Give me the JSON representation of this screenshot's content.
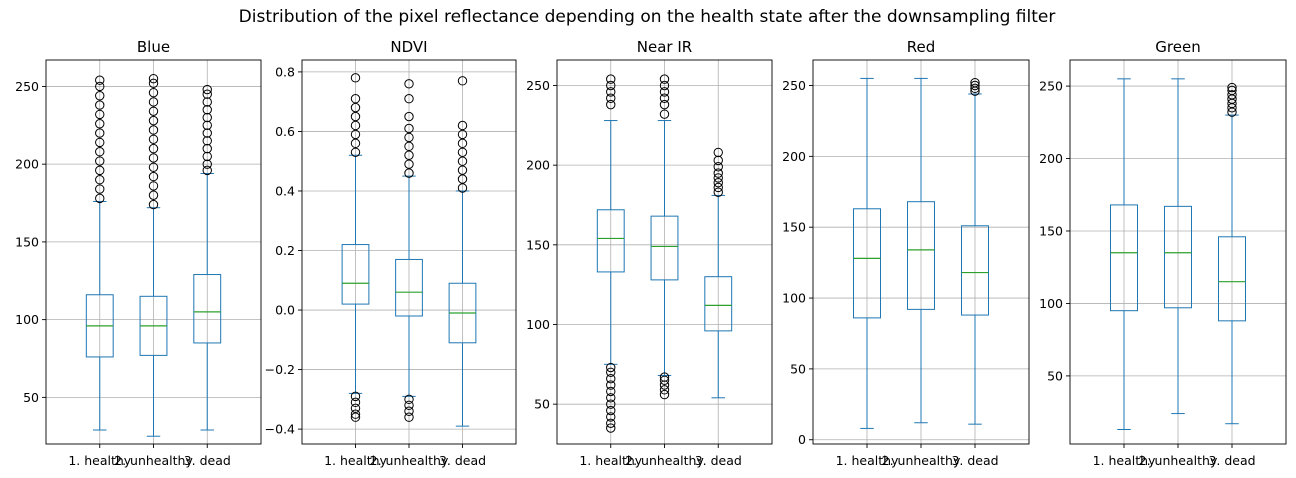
{
  "title": "Distribution of the pixel reflectance depending on the health state after the downsampling filter",
  "colors": {
    "box": "#1f77b4",
    "median": "#2ca02c",
    "grid": "#b0b0b0",
    "axes": "#000000"
  },
  "chart_data": [
    {
      "type": "box",
      "title": "Blue",
      "categories": [
        "1. healthy",
        "2. unhealthy",
        "3. dead"
      ],
      "ylim": [
        20,
        267
      ],
      "yticks": [
        50,
        100,
        150,
        200,
        250
      ],
      "grid": true,
      "boxes": [
        {
          "whislo": 29,
          "q1": 76,
          "med": 96,
          "q3": 116,
          "whishi": 176,
          "fliers": [
            178,
            184,
            190,
            196,
            202,
            208,
            214,
            220,
            226,
            232,
            238,
            244,
            250,
            254
          ]
        },
        {
          "whislo": 25,
          "q1": 77,
          "med": 96,
          "q3": 115,
          "whishi": 172,
          "fliers": [
            174,
            180,
            186,
            192,
            198,
            204,
            210,
            216,
            222,
            228,
            234,
            240,
            246,
            252,
            255
          ]
        },
        {
          "whislo": 29,
          "q1": 85,
          "med": 105,
          "q3": 129,
          "whishi": 194,
          "fliers": [
            196,
            200,
            205,
            210,
            215,
            220,
            225,
            230,
            235,
            240,
            245,
            248
          ]
        }
      ]
    },
    {
      "type": "box",
      "title": "NDVI",
      "categories": [
        "1. healthy",
        "2. unhealthy",
        "3. dead"
      ],
      "ylim": [
        -0.45,
        0.84
      ],
      "yticks": [
        -0.4,
        -0.2,
        0.0,
        0.2,
        0.4,
        0.6,
        0.8
      ],
      "grid": true,
      "boxes": [
        {
          "whislo": -0.28,
          "q1": 0.02,
          "med": 0.09,
          "q3": 0.22,
          "whishi": 0.52,
          "fliers": [
            -0.29,
            -0.31,
            -0.33,
            -0.35,
            -0.36,
            0.53,
            0.56,
            0.59,
            0.62,
            0.65,
            0.68,
            0.71,
            0.78
          ]
        },
        {
          "whislo": -0.29,
          "q1": -0.02,
          "med": 0.06,
          "q3": 0.17,
          "whishi": 0.45,
          "fliers": [
            -0.3,
            -0.32,
            -0.34,
            -0.36,
            0.46,
            0.49,
            0.52,
            0.55,
            0.58,
            0.61,
            0.65,
            0.71,
            0.76
          ]
        },
        {
          "whislo": -0.39,
          "q1": -0.11,
          "med": -0.01,
          "q3": 0.09,
          "whishi": 0.4,
          "fliers": [
            0.41,
            0.44,
            0.47,
            0.5,
            0.53,
            0.56,
            0.59,
            0.62,
            0.77
          ]
        }
      ]
    },
    {
      "type": "box",
      "title": "Near IR",
      "categories": [
        "1. healthy",
        "2. unhealthy",
        "3. dead"
      ],
      "ylim": [
        25,
        266
      ],
      "yticks": [
        50,
        100,
        150,
        200,
        250
      ],
      "grid": true,
      "boxes": [
        {
          "whislo": 75,
          "q1": 133,
          "med": 154,
          "q3": 172,
          "whishi": 228,
          "fliers": [
            35,
            38,
            42,
            46,
            50,
            54,
            58,
            62,
            66,
            70,
            73,
            238,
            242,
            246,
            250,
            254
          ]
        },
        {
          "whislo": 68,
          "q1": 128,
          "med": 149,
          "q3": 168,
          "whishi": 228,
          "fliers": [
            56,
            59,
            62,
            65,
            67,
            232,
            238,
            242,
            246,
            250,
            254
          ]
        },
        {
          "whislo": 54,
          "q1": 96,
          "med": 112,
          "q3": 130,
          "whishi": 181,
          "fliers": [
            183,
            186,
            189,
            192,
            195,
            199,
            203,
            208
          ]
        }
      ]
    },
    {
      "type": "box",
      "title": "Red",
      "categories": [
        "1. healthy",
        "2. unhealthy",
        "3. dead"
      ],
      "ylim": [
        -3,
        268
      ],
      "yticks": [
        0,
        50,
        100,
        150,
        200,
        250
      ],
      "grid": true,
      "boxes": [
        {
          "whislo": 8,
          "q1": 86,
          "med": 128,
          "q3": 163,
          "whishi": 255,
          "fliers": []
        },
        {
          "whislo": 12,
          "q1": 92,
          "med": 134,
          "q3": 168,
          "whishi": 255,
          "fliers": []
        },
        {
          "whislo": 11,
          "q1": 88,
          "med": 118,
          "q3": 151,
          "whishi": 244,
          "fliers": [
            246,
            248,
            250,
            252
          ]
        }
      ]
    },
    {
      "type": "box",
      "title": "Green",
      "categories": [
        "1. healthy",
        "2. unhealthy",
        "3. dead"
      ],
      "ylim": [
        3,
        268
      ],
      "yticks": [
        50,
        100,
        150,
        200,
        250
      ],
      "grid": true,
      "boxes": [
        {
          "whislo": 13,
          "q1": 95,
          "med": 135,
          "q3": 168,
          "whishi": 255,
          "fliers": []
        },
        {
          "whislo": 24,
          "q1": 97,
          "med": 135,
          "q3": 167,
          "whishi": 255,
          "fliers": []
        },
        {
          "whislo": 17,
          "q1": 88,
          "med": 115,
          "q3": 146,
          "whishi": 230,
          "fliers": [
            232,
            235,
            238,
            241,
            244,
            247,
            249
          ]
        }
      ]
    }
  ]
}
